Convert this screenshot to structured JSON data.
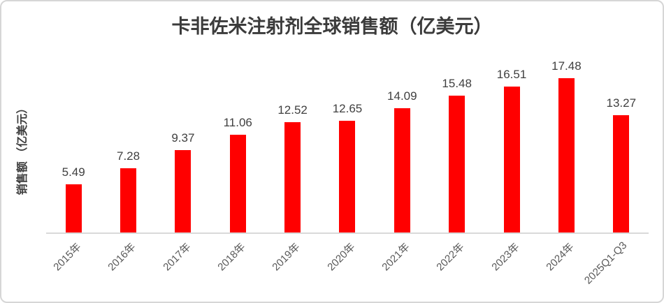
{
  "chart_data": {
    "type": "bar",
    "title": "卡非佐米注射剂全球销售额（亿美元）",
    "ylabel": "销售额 （亿美元）",
    "xlabel": "",
    "categories": [
      "2015年",
      "2016年",
      "2017年",
      "2018年",
      "2019年",
      "2020年",
      "2021年",
      "2022年",
      "2023年",
      "2024年",
      "2025Q1-Q3"
    ],
    "values": [
      5.49,
      7.28,
      9.37,
      11.06,
      12.52,
      12.65,
      14.09,
      15.48,
      16.51,
      17.48,
      13.27
    ],
    "data_labels": [
      "5.49",
      "7.28",
      "9.37",
      "11.06",
      "12.52",
      "12.65",
      "14.09",
      "15.48",
      "16.51",
      "17.48",
      "13.27"
    ],
    "ylim": [
      0,
      19
    ],
    "grid": false,
    "legend": false,
    "bar_color": "#ff0000",
    "data_label_color": "#404040",
    "tick_label_color": "#595959",
    "axis_line_color": "#d9d9d9",
    "title_color": "#3b3b3b",
    "x_tick_rotation_deg": 45
  }
}
